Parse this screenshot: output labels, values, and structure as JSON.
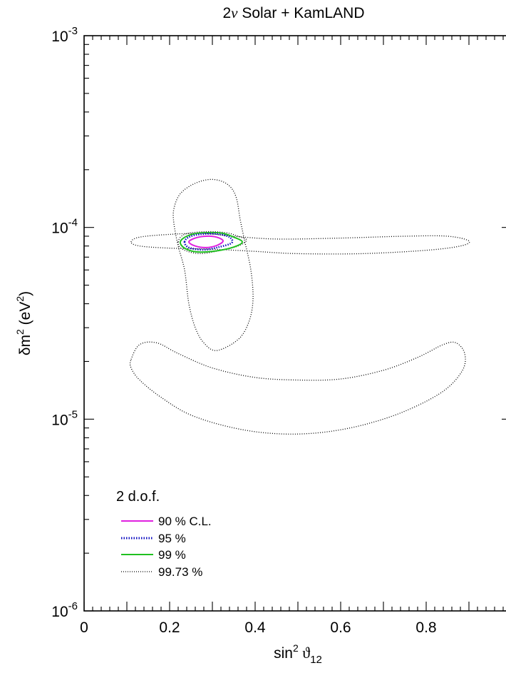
{
  "chart_data": {
    "type": "line",
    "title": "2ν Solar + KamLAND",
    "title_prefix": "2",
    "title_greek": "ν",
    "title_suffix": " Solar + KamLAND",
    "xlabel_main": "sin",
    "xlabel_sup": "2",
    "xlabel_greek": " ϑ",
    "xlabel_sub": "12",
    "ylabel_main": "δm",
    "ylabel_sup": "2",
    "ylabel_unit_open": " (eV",
    "ylabel_unit_sup": "2",
    "ylabel_unit_close": ")",
    "xlim": [
      0,
      1
    ],
    "ylim": [
      1e-06,
      0.001
    ],
    "y_scale": "log",
    "x_ticks": [
      {
        "value": 0,
        "label": "0"
      },
      {
        "value": 0.2,
        "label": "0.2"
      },
      {
        "value": 0.4,
        "label": "0.4"
      },
      {
        "value": 0.6,
        "label": "0.6"
      },
      {
        "value": 0.8,
        "label": "0.8"
      }
    ],
    "y_ticks": [
      {
        "value": 1e-06,
        "base": "10",
        "exp": "-6"
      },
      {
        "value": 1e-05,
        "base": "10",
        "exp": "-5"
      },
      {
        "value": 0.0001,
        "base": "10",
        "exp": "-4"
      },
      {
        "value": 0.001,
        "base": "10",
        "exp": "-3"
      }
    ],
    "legend": {
      "title": "2 d.o.f.",
      "placement": "bottom-left",
      "entries": [
        "90 % C.L.",
        "95 %",
        "99 %",
        "99.73 %"
      ]
    },
    "series": [
      {
        "name": "90 % C.L.",
        "color": "#e020e0",
        "style": "solid",
        "contours": [
          [
            [
              0.245,
              8.4e-05
            ],
            [
              0.26,
              8.8e-05
            ],
            [
              0.285,
              9e-05
            ],
            [
              0.31,
              8.9e-05
            ],
            [
              0.325,
              8.5e-05
            ],
            [
              0.31,
              8.05e-05
            ],
            [
              0.285,
              7.85e-05
            ],
            [
              0.26,
              8e-05
            ]
          ]
        ]
      },
      {
        "name": "95 %",
        "color": "#1010c0",
        "style": "dotted",
        "contours": [
          [
            [
              0.235,
              8.4e-05
            ],
            [
              0.245,
              8.9e-05
            ],
            [
              0.27,
              9.2e-05
            ],
            [
              0.31,
              9.25e-05
            ],
            [
              0.34,
              8.9e-05
            ],
            [
              0.345,
              8.3e-05
            ],
            [
              0.315,
              7.9e-05
            ],
            [
              0.28,
              7.65e-05
            ],
            [
              0.245,
              7.85e-05
            ]
          ]
        ]
      },
      {
        "name": "99 %",
        "color": "#20c020",
        "style": "solid",
        "contours": [
          [
            [
              0.225,
              8.4e-05
            ],
            [
              0.24,
              9e-05
            ],
            [
              0.27,
              9.35e-05
            ],
            [
              0.32,
              9.35e-05
            ],
            [
              0.35,
              8.9e-05
            ],
            [
              0.37,
              8.4e-05
            ],
            [
              0.35,
              7.9e-05
            ],
            [
              0.31,
              7.55e-05
            ],
            [
              0.265,
              7.45e-05
            ],
            [
              0.235,
              7.8e-05
            ]
          ]
        ]
      },
      {
        "name": "99.73 %",
        "color": "#000000",
        "style": "dotted",
        "contours": [
          [
            [
              0.22,
              8.4e-05
            ],
            [
              0.235,
              9.2e-05
            ],
            [
              0.28,
              9.5e-05
            ],
            [
              0.33,
              9.4e-05
            ],
            [
              0.36,
              9e-05
            ],
            [
              0.38,
              8.6e-05
            ],
            [
              0.36,
              8e-05
            ],
            [
              0.32,
              7.6e-05
            ],
            [
              0.27,
              7.3e-05
            ],
            [
              0.23,
              7.7e-05
            ]
          ],
          [
            [
              0.21,
              0.000125
            ],
            [
              0.225,
              0.00015
            ],
            [
              0.26,
              0.00017
            ],
            [
              0.3,
              0.000178
            ],
            [
              0.335,
              0.000168
            ],
            [
              0.355,
              0.000145
            ],
            [
              0.365,
              0.00011
            ],
            [
              0.375,
              8.6e-05
            ],
            [
              0.39,
              6e-05
            ],
            [
              0.395,
              4.2e-05
            ],
            [
              0.385,
              3.2e-05
            ],
            [
              0.36,
              2.6e-05
            ],
            [
              0.31,
              2.28e-05
            ],
            [
              0.28,
              2.5e-05
            ],
            [
              0.26,
              3e-05
            ],
            [
              0.245,
              4e-05
            ],
            [
              0.235,
              6e-05
            ],
            [
              0.22,
              8e-05
            ],
            [
              0.21,
              0.000105
            ]
          ],
          [
            [
              0.11,
              8.4e-05
            ],
            [
              0.13,
              8.9e-05
            ],
            [
              0.2,
              9.2e-05
            ],
            [
              0.28,
              9.3e-05
            ],
            [
              0.35,
              9e-05
            ],
            [
              0.45,
              8.7e-05
            ],
            [
              0.6,
              8.8e-05
            ],
            [
              0.75,
              9e-05
            ],
            [
              0.85,
              9e-05
            ],
            [
              0.9,
              8.5e-05
            ],
            [
              0.88,
              8e-05
            ],
            [
              0.8,
              7.6e-05
            ],
            [
              0.65,
              7.3e-05
            ],
            [
              0.5,
              7.3e-05
            ],
            [
              0.4,
              7.5e-05
            ],
            [
              0.3,
              7.7e-05
            ],
            [
              0.2,
              7.8e-05
            ],
            [
              0.13,
              8e-05
            ]
          ],
          [
            [
              0.11,
              2.05e-05
            ],
            [
              0.13,
              2.45e-05
            ],
            [
              0.17,
              2.5e-05
            ],
            [
              0.22,
              2.2e-05
            ],
            [
              0.3,
              1.85e-05
            ],
            [
              0.4,
              1.65e-05
            ],
            [
              0.5,
              1.6e-05
            ],
            [
              0.6,
              1.62e-05
            ],
            [
              0.7,
              1.8e-05
            ],
            [
              0.78,
              2.1e-05
            ],
            [
              0.84,
              2.45e-05
            ],
            [
              0.87,
              2.5e-05
            ],
            [
              0.89,
              2.2e-05
            ],
            [
              0.885,
              1.8e-05
            ],
            [
              0.84,
              1.4e-05
            ],
            [
              0.75,
              1.1e-05
            ],
            [
              0.65,
              9.3e-06
            ],
            [
              0.55,
              8.5e-06
            ],
            [
              0.45,
              8.4e-06
            ],
            [
              0.35,
              9e-06
            ],
            [
              0.25,
              1.05e-05
            ],
            [
              0.18,
              1.3e-05
            ],
            [
              0.13,
              1.6e-05
            ],
            [
              0.11,
              1.85e-05
            ]
          ]
        ]
      }
    ]
  }
}
